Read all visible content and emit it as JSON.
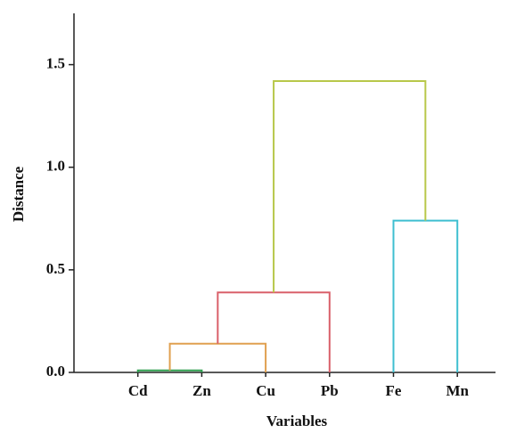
{
  "chart_data": {
    "type": "dendrogram",
    "x_label": "Variables",
    "y_label": "Distance",
    "categories": [
      "Cd",
      "Zn",
      "Cu",
      "Pb",
      "Fe",
      "Mn"
    ],
    "merges": [
      {
        "children": [
          0,
          1
        ],
        "height": 0.01,
        "color": "#2e9e4f"
      },
      {
        "children": [
          6,
          2
        ],
        "height": 0.14,
        "color": "#e0a050"
      },
      {
        "children": [
          7,
          3
        ],
        "height": 0.39,
        "color": "#d9606a"
      },
      {
        "children": [
          4,
          5
        ],
        "height": 0.74,
        "color": "#3fbfd0"
      },
      {
        "children": [
          8,
          9
        ],
        "height": 1.42,
        "color": "#b8c84a"
      }
    ],
    "ylim": [
      0,
      1.75
    ],
    "yticks": [
      {
        "value": 0,
        "label": "0.0"
      },
      {
        "value": 0.5,
        "label": "0.5"
      },
      {
        "value": 1,
        "label": "1.0"
      },
      {
        "value": 1.5,
        "label": "1.5"
      }
    ]
  }
}
